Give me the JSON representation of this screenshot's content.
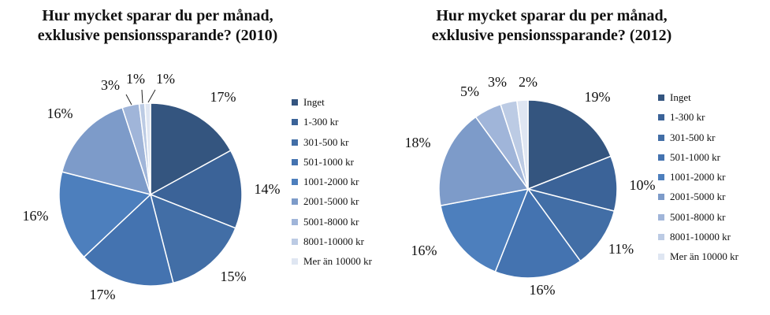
{
  "legend_categories": [
    "Inget",
    "1-300 kr",
    "301-500 kr",
    "501-1000 kr",
    "1001-2000 kr",
    "2001-5000 kr",
    "5001-8000 kr",
    "8001-10000 kr",
    "Mer än 10000 kr"
  ],
  "colors": [
    "#34557f",
    "#3b6398",
    "#426ea6",
    "#4473b0",
    "#4d7fbd",
    "#7d9bc9",
    "#a0b5d9",
    "#bccbe4",
    "#dfe6f2"
  ],
  "chart_data": [
    {
      "type": "pie",
      "title_lines": [
        "Hur mycket sparar du per månad,",
        "exklusive pensionssparande? (2010)"
      ],
      "categories": [
        "Inget",
        "1-300 kr",
        "301-500 kr",
        "501-1000 kr",
        "1001-2000 kr",
        "2001-5000 kr",
        "5001-8000 kr",
        "8001-10000 kr",
        "Mer än 10000 kr"
      ],
      "values": [
        17,
        14,
        15,
        17,
        16,
        16,
        3,
        1,
        1
      ],
      "data_labels": [
        "17%",
        "14%",
        "15%",
        "17%",
        "16%",
        "16%",
        "3%",
        "1%",
        "1%"
      ],
      "legend_position": "right"
    },
    {
      "type": "pie",
      "title_lines": [
        "Hur mycket sparar du per månad,",
        "exklusive pensionssparande? (2012)"
      ],
      "categories": [
        "Inget",
        "1-300 kr",
        "301-500 kr",
        "501-1000 kr",
        "1001-2000 kr",
        "2001-5000 kr",
        "5001-8000 kr",
        "8001-10000 kr",
        "Mer än 10000 kr"
      ],
      "values": [
        19,
        10,
        11,
        16,
        16,
        18,
        5,
        3,
        2
      ],
      "data_labels": [
        "19%",
        "10%",
        "11%",
        "16%",
        "16%",
        "18%",
        "5%",
        "3%",
        "2%"
      ],
      "legend_position": "right"
    }
  ]
}
